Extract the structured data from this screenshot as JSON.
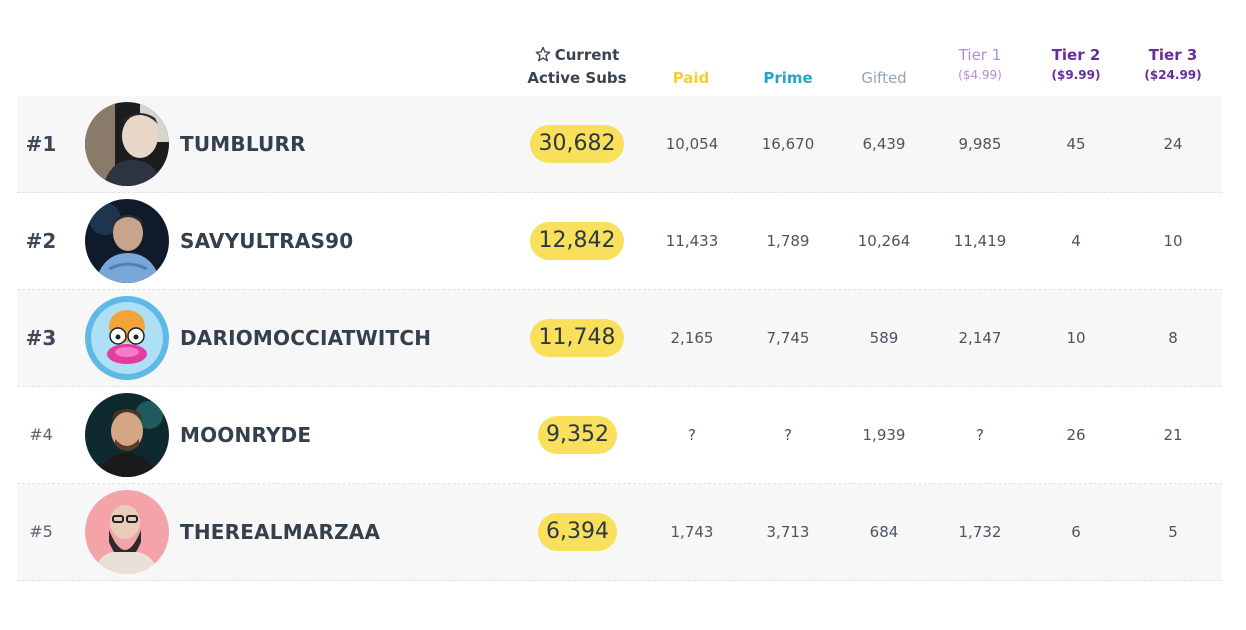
{
  "header": {
    "current_line1": "Current",
    "current_line2": "Active Subs",
    "paid": "Paid",
    "prime": "Prime",
    "gifted": "Gifted",
    "tier1": "Tier 1",
    "tier1_price": "($4.99)",
    "tier2": "Tier 2",
    "tier2_price": "($9.99)",
    "tier3": "Tier 3",
    "tier3_price": "($24.99)"
  },
  "colors": {
    "paid": "#f2cf3a",
    "prime": "#2aa3c8",
    "gifted": "#93a5b5",
    "tier1": "#b58ed8",
    "tier2_3": "#6a2b9c",
    "pill": "#f8df5c"
  },
  "rows": [
    {
      "rank": "#1",
      "name": "TUMBLURR",
      "current": "30,682",
      "paid": "10,054",
      "prime": "16,670",
      "gifted": "6,439",
      "tier1": "9,985",
      "tier2": "45",
      "tier3": "24"
    },
    {
      "rank": "#2",
      "name": "SAVYULTRAS90",
      "current": "12,842",
      "paid": "11,433",
      "prime": "1,789",
      "gifted": "10,264",
      "tier1": "11,419",
      "tier2": "4",
      "tier3": "10"
    },
    {
      "rank": "#3",
      "name": "DARIOMOCCIATWITCH",
      "current": "11,748",
      "paid": "2,165",
      "prime": "7,745",
      "gifted": "589",
      "tier1": "2,147",
      "tier2": "10",
      "tier3": "8"
    },
    {
      "rank": "#4",
      "name": "MOONRYDE",
      "current": "9,352",
      "paid": "?",
      "prime": "?",
      "gifted": "1,939",
      "tier1": "?",
      "tier2": "26",
      "tier3": "21"
    },
    {
      "rank": "#5",
      "name": "THEREALMARZAA",
      "current": "6,394",
      "paid": "1,743",
      "prime": "3,713",
      "gifted": "684",
      "tier1": "1,732",
      "tier2": "6",
      "tier3": "5"
    }
  ]
}
